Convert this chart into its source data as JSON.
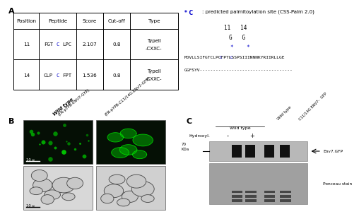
{
  "panel_A_label": "A",
  "panel_B_label": "B",
  "panel_C_label": "C",
  "table_headers": [
    "Position",
    "Peptide",
    "Score",
    "Cut-off",
    "Type"
  ],
  "table_rows": [
    [
      "11",
      "FGTCLPC",
      "2.107",
      "0.8",
      "TypeII\n-CXXC-"
    ],
    [
      "14",
      "CLPCFPT",
      "1.536",
      "0.8",
      "TypeII\n-CXXC-"
    ]
  ],
  "legend_text": "* C: predicted palmitoylation site (CSS-Palm 2.0)",
  "positions_text": "11    14",
  "gg_text": "G    G",
  "sequence_line1": "MDVLLSIFGTCLPCFPTLSSPSIIINNNKYRIIRLLGE",
  "sequence_line2": "GGFSYV-------------------------------------",
  "wt_label_line1": "Wild type",
  "wt_label_line2": "(EN-pYPB-ENV7-GFP)",
  "mut_label": "(EN-pYPB-C11/14G.ENV7-GFP)",
  "hydroxyl_label": "Hydroxyl.",
  "hydroxyl_minus": "-",
  "hydroxyl_plus": "+",
  "wild_type_header": "Wild type",
  "wild_type_rot": "Wild type",
  "c11_14g_rot": "C11/14G ENV7-  GFP",
  "kda_val": "70",
  "kda_unit": "KDa",
  "env7_label": "Env7.GFP",
  "ponceau_label": "Ponceau stain",
  "bg_color": "#ffffff",
  "blue_color": "#0000cc",
  "text_color": "#000000",
  "fl_bg_color": "#050f05",
  "bf_bg_color": "#d8d8d8"
}
